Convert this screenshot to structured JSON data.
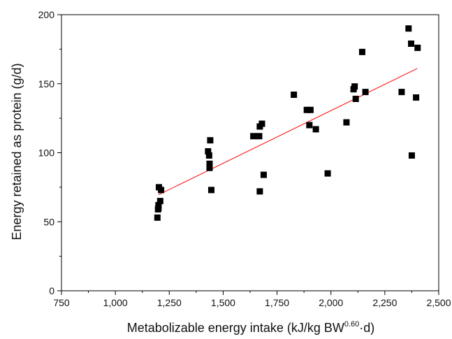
{
  "chart_data": {
    "type": "scatter",
    "title": "",
    "xlabel": "Metabolizable energy intake (kJ/kg BW",
    "xlabel_sup": "0.60",
    "xlabel_tail": "·d)",
    "ylabel": "Energy retained as protein (g/d)",
    "xlim": [
      750,
      2500
    ],
    "ylim": [
      0,
      200
    ],
    "xticks": [
      750,
      1000,
      1250,
      1500,
      1750,
      2000,
      2250,
      2500
    ],
    "xtick_labels": [
      "750",
      "1,000",
      "1,250",
      "1,500",
      "1,750",
      "2,000",
      "2,250",
      "2,500"
    ],
    "yticks": [
      0,
      50,
      100,
      150,
      200
    ],
    "ytick_labels": [
      "0",
      "50",
      "100",
      "150",
      "200"
    ],
    "grid": false,
    "legend": "none",
    "colors": {
      "points": "#000000",
      "fit_line": "#ff0000",
      "axes": "#000000"
    },
    "points": [
      {
        "x": 1195,
        "y": 53
      },
      {
        "x": 1198,
        "y": 59
      },
      {
        "x": 1200,
        "y": 62
      },
      {
        "x": 1202,
        "y": 75
      },
      {
        "x": 1208,
        "y": 65
      },
      {
        "x": 1212,
        "y": 73
      },
      {
        "x": 1200,
        "y": 60
      },
      {
        "x": 1430,
        "y": 101
      },
      {
        "x": 1435,
        "y": 98
      },
      {
        "x": 1437,
        "y": 92
      },
      {
        "x": 1437,
        "y": 89
      },
      {
        "x": 1440,
        "y": 109
      },
      {
        "x": 1445,
        "y": 73
      },
      {
        "x": 1640,
        "y": 112
      },
      {
        "x": 1667,
        "y": 112
      },
      {
        "x": 1670,
        "y": 119
      },
      {
        "x": 1680,
        "y": 121
      },
      {
        "x": 1670,
        "y": 72
      },
      {
        "x": 1688,
        "y": 84
      },
      {
        "x": 1828,
        "y": 142
      },
      {
        "x": 1888,
        "y": 131
      },
      {
        "x": 1905,
        "y": 131
      },
      {
        "x": 1900,
        "y": 120
      },
      {
        "x": 1930,
        "y": 117
      },
      {
        "x": 1985,
        "y": 85
      },
      {
        "x": 2072,
        "y": 122
      },
      {
        "x": 2105,
        "y": 146
      },
      {
        "x": 2110,
        "y": 148
      },
      {
        "x": 2115,
        "y": 139
      },
      {
        "x": 2145,
        "y": 173
      },
      {
        "x": 2160,
        "y": 144
      },
      {
        "x": 2328,
        "y": 144
      },
      {
        "x": 2360,
        "y": 190
      },
      {
        "x": 2372,
        "y": 179
      },
      {
        "x": 2375,
        "y": 98
      },
      {
        "x": 2395,
        "y": 140
      },
      {
        "x": 2402,
        "y": 176
      }
    ],
    "fit_line": {
      "x": [
        1200,
        2400
      ],
      "y": [
        69.5,
        161
      ]
    }
  }
}
